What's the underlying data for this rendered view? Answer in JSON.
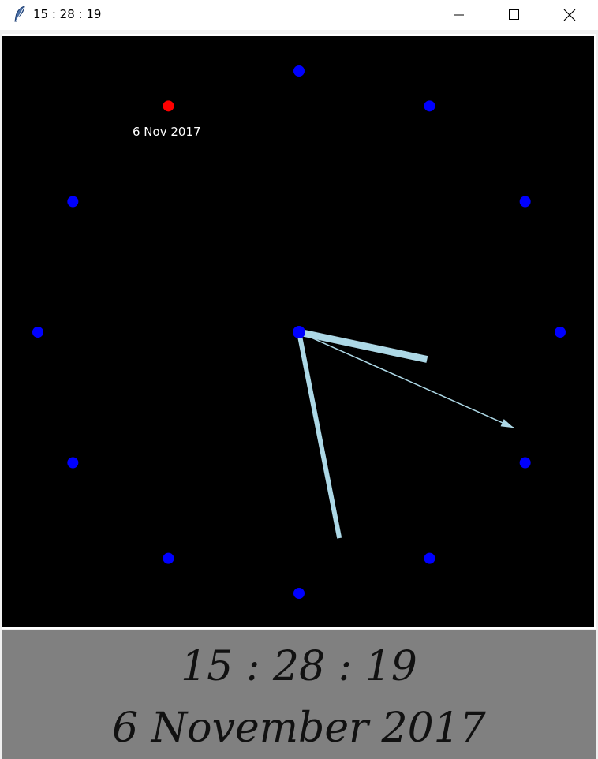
{
  "window": {
    "title": "15 : 28 : 19",
    "icon": "feather-icon",
    "controls": [
      "minimize-icon",
      "maximize-icon",
      "close-icon"
    ]
  },
  "clock": {
    "hours": 15,
    "minutes": 28,
    "seconds": 19,
    "date_small": "6 Nov 2017",
    "colors": {
      "background": "#000000",
      "hour_marker": "#0000ff",
      "current_marker": "#ff0000",
      "hands": "#add8e6",
      "date_text": "#ffffff"
    }
  },
  "digital": {
    "time": "15 : 28 : 19",
    "date": "6 November 2017",
    "panel_color": "#808080"
  }
}
